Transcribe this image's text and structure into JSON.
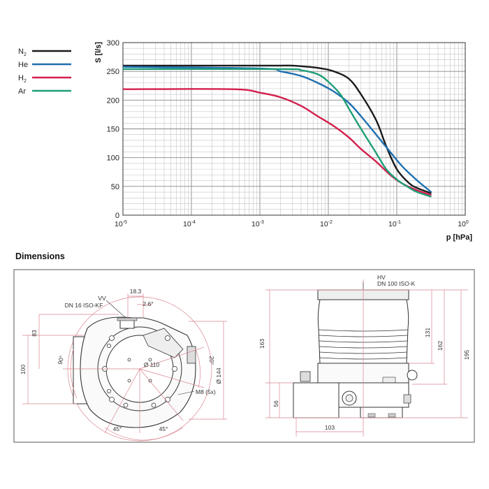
{
  "chart_data": {
    "type": "line",
    "ylabel": "S [l/s]",
    "xlabel": "p [hPa]",
    "x_scale": "log",
    "xlim": [
      1e-05,
      1
    ],
    "ylim": [
      0,
      300
    ],
    "y_ticks": [
      "0",
      "50",
      "100",
      "150",
      "200",
      "250",
      "300"
    ],
    "x_ticks": [
      {
        "base": "10",
        "exp": "-5"
      },
      {
        "base": "10",
        "exp": "-4"
      },
      {
        "base": "10",
        "exp": "-3"
      },
      {
        "base": "10",
        "exp": "-2"
      },
      {
        "base": "10",
        "exp": "-1"
      },
      {
        "base": "10",
        "exp": "0"
      }
    ],
    "grid": true,
    "legend_position": "left",
    "series": [
      {
        "name": "N",
        "sub": "2",
        "color": "#1a1a1a",
        "x": [
          1e-05,
          0.001,
          0.002,
          0.003,
          0.005,
          0.008,
          0.012,
          0.02,
          0.03,
          0.05,
          0.07,
          0.1,
          0.15,
          0.2,
          0.32
        ],
        "y": [
          260,
          260,
          260,
          260,
          258,
          255,
          250,
          237,
          210,
          165,
          120,
          80,
          56,
          47,
          38
        ]
      },
      {
        "name": "He",
        "sub": "",
        "color": "#1e6fb0",
        "x": [
          1e-05,
          0.001,
          0.002,
          0.004,
          0.007,
          0.012,
          0.02,
          0.03,
          0.05,
          0.08,
          0.12,
          0.2,
          0.32
        ],
        "y": [
          258,
          255,
          250,
          242,
          230,
          215,
          195,
          172,
          140,
          110,
          85,
          60,
          40
        ]
      },
      {
        "name": "H",
        "sub": "2",
        "color": "#d41f4d",
        "x": [
          1e-05,
          0.0004,
          0.001,
          0.002,
          0.004,
          0.007,
          0.012,
          0.02,
          0.03,
          0.05,
          0.08,
          0.12,
          0.2,
          0.32
        ],
        "y": [
          219,
          219,
          213,
          205,
          190,
          172,
          155,
          135,
          115,
          93,
          70,
          55,
          43,
          35
        ]
      },
      {
        "name": "Ar",
        "sub": "",
        "color": "#1f9e78",
        "x": [
          1e-05,
          0.002,
          0.004,
          0.007,
          0.01,
          0.015,
          0.02,
          0.03,
          0.05,
          0.07,
          0.1,
          0.15,
          0.2,
          0.32
        ],
        "y": [
          254,
          254,
          252,
          245,
          232,
          210,
          185,
          150,
          108,
          80,
          62,
          48,
          40,
          32
        ]
      }
    ]
  },
  "dimensions": {
    "title": "Dimensions",
    "left_view": {
      "labels": {
        "vv": "VV",
        "flange": "DN 16 ISO-KF",
        "w18": "18.3",
        "a26": "2.6°",
        "d83": "83",
        "a90": "90°",
        "d100": "100",
        "d110": "Ø 110",
        "a20": "20°",
        "d144": "Ø 144",
        "m8": "M8 (5x)",
        "a45l": "45°",
        "a45r": "45°"
      }
    },
    "right_view": {
      "labels": {
        "hv": "HV",
        "flange": "DN 100 ISO-K",
        "d163": "163",
        "d131": "131",
        "d162": "162",
        "d195": "195",
        "d56": "56",
        "d103": "103"
      }
    }
  }
}
